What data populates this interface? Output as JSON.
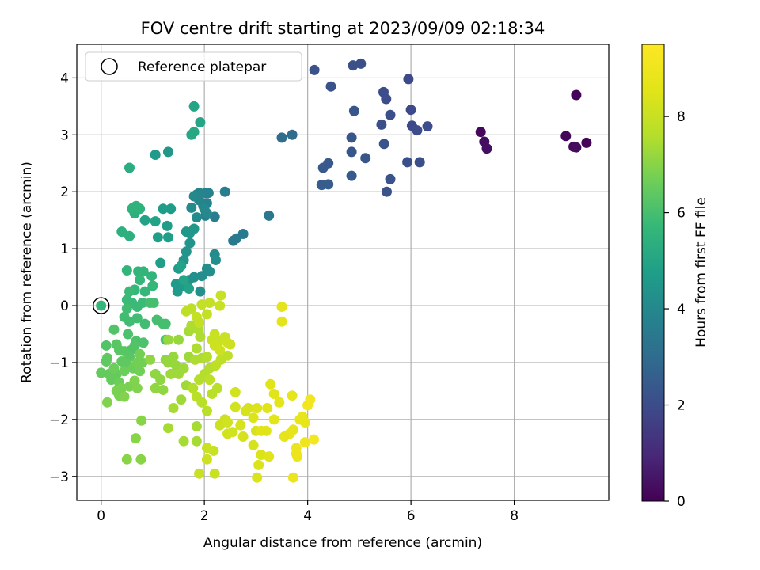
{
  "chart_data": {
    "type": "scatter",
    "title": "FOV centre drift starting at 2023/09/09 02:18:34",
    "xlabel": "Angular distance from reference (arcmin)",
    "ylabel": "Rotation from reference (arcmin)",
    "xlim": [
      -0.47,
      9.83
    ],
    "ylim": [
      -3.42,
      4.59
    ],
    "xticks": [
      0,
      2,
      4,
      6,
      8
    ],
    "yticks": [
      -3,
      -2,
      -1,
      0,
      1,
      2,
      3,
      4
    ],
    "grid": true,
    "legend": {
      "position": "top-left",
      "entries": [
        "Reference platepar"
      ]
    },
    "reference_point": {
      "x": 0,
      "y": 0
    },
    "colorbar": {
      "label": "Hours from first FF file",
      "colormap": "viridis",
      "range": [
        0,
        9.5
      ],
      "ticks": [
        0,
        2,
        4,
        6,
        8
      ]
    },
    "points": [
      [
        9.2,
        3.7,
        0.1
      ],
      [
        9.0,
        2.98,
        0.15
      ],
      [
        9.15,
        2.79,
        0.2
      ],
      [
        9.4,
        2.86,
        0.1
      ],
      [
        9.2,
        2.78,
        0.25
      ],
      [
        7.35,
        3.05,
        0.2
      ],
      [
        7.42,
        2.88,
        0.3
      ],
      [
        7.47,
        2.76,
        0.35
      ],
      [
        5.95,
        3.98,
        1.9
      ],
      [
        6.0,
        3.44,
        1.9
      ],
      [
        6.02,
        3.16,
        1.9
      ],
      [
        6.12,
        3.08,
        2.0
      ],
      [
        6.32,
        3.15,
        2.0
      ],
      [
        5.93,
        2.52,
        2.1
      ],
      [
        6.17,
        2.52,
        2.1
      ],
      [
        5.47,
        3.75,
        2.0
      ],
      [
        5.52,
        3.63,
        2.0
      ],
      [
        5.6,
        3.35,
        2.1
      ],
      [
        5.43,
        3.18,
        2.1
      ],
      [
        5.48,
        2.84,
        2.2
      ],
      [
        5.6,
        2.22,
        2.2
      ],
      [
        5.53,
        2.0,
        2.2
      ],
      [
        4.88,
        4.22,
        2.1
      ],
      [
        5.03,
        4.25,
        2.1
      ],
      [
        4.45,
        3.85,
        2.2
      ],
      [
        4.13,
        4.14,
        2.2
      ],
      [
        4.9,
        3.42,
        2.3
      ],
      [
        4.85,
        2.95,
        2.3
      ],
      [
        4.85,
        2.7,
        2.3
      ],
      [
        5.12,
        2.59,
        2.3
      ],
      [
        4.85,
        2.28,
        2.4
      ],
      [
        4.4,
        2.5,
        2.4
      ],
      [
        4.3,
        2.42,
        2.4
      ],
      [
        4.27,
        2.12,
        2.5
      ],
      [
        4.4,
        2.13,
        2.5
      ],
      [
        3.5,
        2.95,
        3.0
      ],
      [
        3.7,
        3.0,
        3.0
      ],
      [
        3.25,
        1.58,
        3.4
      ],
      [
        2.75,
        1.26,
        3.5
      ],
      [
        2.62,
        1.18,
        3.5
      ],
      [
        2.56,
        1.14,
        3.5
      ],
      [
        2.4,
        2.0,
        3.6
      ],
      [
        2.2,
        1.56,
        3.6
      ],
      [
        2.02,
        1.58,
        3.7
      ],
      [
        1.98,
        1.75,
        3.8
      ],
      [
        2.05,
        1.8,
        3.8
      ],
      [
        2.08,
        1.98,
        3.8
      ],
      [
        2.02,
        1.98,
        3.8
      ],
      [
        1.9,
        1.98,
        3.9
      ],
      [
        1.85,
        1.95,
        3.9
      ],
      [
        1.9,
        1.85,
        3.9
      ],
      [
        2.0,
        1.7,
        4.0
      ],
      [
        2.05,
        1.62,
        4.0
      ],
      [
        1.8,
        1.92,
        4.0
      ],
      [
        1.75,
        1.72,
        4.1
      ],
      [
        1.85,
        1.55,
        4.1
      ],
      [
        2.2,
        0.9,
        4.1
      ],
      [
        2.22,
        0.8,
        4.2
      ],
      [
        2.05,
        0.65,
        4.2
      ],
      [
        1.95,
        0.52,
        4.2
      ],
      [
        2.1,
        0.6,
        4.2
      ],
      [
        1.92,
        0.25,
        4.3
      ],
      [
        1.8,
        0.5,
        4.3
      ],
      [
        1.7,
        0.45,
        4.3
      ],
      [
        1.6,
        0.8,
        4.4
      ],
      [
        1.65,
        0.95,
        4.4
      ],
      [
        1.72,
        1.1,
        4.4
      ],
      [
        1.65,
        1.3,
        4.5
      ],
      [
        1.72,
        1.28,
        4.5
      ],
      [
        1.8,
        1.35,
        4.5
      ],
      [
        1.5,
        0.65,
        4.6
      ],
      [
        1.45,
        0.38,
        4.6
      ],
      [
        1.48,
        0.25,
        4.6
      ],
      [
        1.6,
        0.35,
        4.6
      ],
      [
        1.35,
        1.7,
        4.7
      ],
      [
        1.2,
        1.7,
        4.7
      ],
      [
        1.28,
        1.4,
        4.7
      ],
      [
        1.3,
        1.2,
        4.8
      ],
      [
        1.1,
        1.2,
        4.8
      ],
      [
        1.15,
        0.75,
        4.8
      ],
      [
        0.85,
        1.5,
        4.9
      ],
      [
        1.05,
        1.48,
        4.9
      ],
      [
        1.3,
        2.7,
        4.5
      ],
      [
        1.05,
        2.65,
        4.6
      ],
      [
        1.55,
        0.7,
        4.9
      ],
      [
        1.7,
        0.3,
        4.9
      ],
      [
        1.6,
        0.45,
        5.0
      ],
      [
        1.8,
        3.5,
        5.0
      ],
      [
        1.92,
        3.22,
        5.0
      ],
      [
        1.75,
        3.0,
        5.1
      ],
      [
        1.8,
        3.05,
        5.1
      ],
      [
        0.55,
        2.42,
        5.3
      ],
      [
        0.4,
        1.3,
        5.4
      ],
      [
        0.55,
        1.22,
        5.4
      ],
      [
        0.65,
        1.62,
        5.4
      ],
      [
        0.62,
        1.72,
        5.5
      ],
      [
        0.75,
        1.7,
        5.5
      ],
      [
        0.68,
        1.75,
        5.5
      ],
      [
        0.6,
        1.7,
        5.5
      ],
      [
        0.5,
        0.62,
        5.6
      ],
      [
        0.72,
        0.6,
        5.6
      ],
      [
        0.82,
        0.6,
        5.6
      ],
      [
        0.98,
        0.52,
        5.6
      ],
      [
        1.0,
        0.35,
        5.7
      ],
      [
        0.75,
        0.45,
        5.7
      ],
      [
        0.85,
        0.25,
        5.7
      ],
      [
        0.65,
        0.28,
        5.7
      ],
      [
        0.55,
        0.25,
        5.8
      ],
      [
        0.5,
        0.1,
        5.8
      ],
      [
        0.6,
        0.05,
        5.8
      ],
      [
        0.7,
        -0.02,
        5.8
      ],
      [
        0.8,
        0.05,
        5.8
      ],
      [
        0.5,
        -0.05,
        5.9
      ],
      [
        0.45,
        -0.2,
        5.9
      ],
      [
        0.55,
        -0.28,
        5.9
      ],
      [
        0.7,
        -0.22,
        5.9
      ],
      [
        0.85,
        -0.32,
        5.9
      ],
      [
        0.95,
        0.05,
        6.0
      ],
      [
        1.02,
        0.05,
        6.0
      ],
      [
        1.08,
        -0.25,
        6.0
      ],
      [
        1.2,
        -0.32,
        6.0
      ],
      [
        1.25,
        -0.32,
        6.0
      ],
      [
        1.25,
        -0.6,
        6.1
      ],
      [
        0.52,
        -0.5,
        6.1
      ],
      [
        0.68,
        -0.62,
        6.1
      ],
      [
        0.82,
        -0.65,
        6.1
      ],
      [
        0.58,
        -0.78,
        6.2
      ],
      [
        0.65,
        -0.7,
        6.2
      ],
      [
        0.1,
        -0.7,
        6.2
      ],
      [
        0.25,
        -0.42,
        6.2
      ],
      [
        0.3,
        -0.68,
        6.3
      ],
      [
        0.35,
        -0.78,
        6.3
      ],
      [
        0.45,
        -0.8,
        6.3
      ],
      [
        0.55,
        -0.9,
        6.3
      ],
      [
        0.4,
        -0.98,
        6.4
      ],
      [
        0.5,
        -1.02,
        6.4
      ],
      [
        0.1,
        -0.98,
        6.4
      ],
      [
        0.12,
        -0.92,
        6.4
      ],
      [
        0.0,
        -1.18,
        6.5
      ],
      [
        0.15,
        -1.2,
        6.5
      ],
      [
        0.2,
        -1.3,
        6.5
      ],
      [
        0.3,
        -1.2,
        6.5
      ],
      [
        0.35,
        -1.35,
        6.6
      ],
      [
        0.25,
        -1.1,
        6.6
      ],
      [
        0.45,
        -1.15,
        6.6
      ],
      [
        0.62,
        -1.1,
        6.6
      ],
      [
        0.7,
        -1.0,
        6.7
      ],
      [
        0.75,
        -0.85,
        6.7
      ],
      [
        0.8,
        -1.0,
        6.7
      ],
      [
        0.75,
        -1.15,
        6.7
      ],
      [
        0.3,
        -1.5,
        6.8
      ],
      [
        0.35,
        -1.58,
        6.8
      ],
      [
        0.4,
        -1.45,
        6.8
      ],
      [
        0.55,
        -1.42,
        6.8
      ],
      [
        0.65,
        -1.32,
        6.9
      ],
      [
        0.7,
        -1.45,
        6.9
      ],
      [
        0.12,
        -1.7,
        6.9
      ],
      [
        0.45,
        -1.6,
        6.9
      ],
      [
        0.5,
        -2.7,
        7.0
      ],
      [
        0.77,
        -2.7,
        7.0
      ],
      [
        0.67,
        -2.33,
        7.0
      ],
      [
        0.78,
        -2.02,
        7.0
      ],
      [
        0.95,
        -0.95,
        7.1
      ],
      [
        1.05,
        -1.2,
        7.1
      ],
      [
        1.15,
        -1.3,
        7.1
      ],
      [
        1.25,
        -0.95,
        7.1
      ],
      [
        1.05,
        -1.45,
        7.1
      ],
      [
        1.2,
        -1.48,
        7.1
      ],
      [
        1.3,
        -1.0,
        7.2
      ],
      [
        1.4,
        -0.9,
        7.2
      ],
      [
        1.3,
        -0.6,
        7.2
      ],
      [
        1.5,
        -0.6,
        7.2
      ],
      [
        1.45,
        -1.05,
        7.2
      ],
      [
        1.35,
        -1.2,
        7.3
      ],
      [
        1.5,
        -1.2,
        7.3
      ],
      [
        1.6,
        -1.1,
        7.3
      ],
      [
        1.7,
        -0.9,
        7.3
      ],
      [
        1.65,
        -1.4,
        7.3
      ],
      [
        1.55,
        -1.65,
        7.3
      ],
      [
        1.4,
        -1.8,
        7.4
      ],
      [
        1.3,
        -2.15,
        7.4
      ],
      [
        1.6,
        -2.38,
        7.4
      ],
      [
        1.85,
        -2.38,
        7.4
      ],
      [
        1.85,
        -2.12,
        7.4
      ],
      [
        1.7,
        -0.45,
        7.4
      ],
      [
        1.75,
        -0.35,
        7.5
      ],
      [
        1.88,
        -0.42,
        7.5
      ],
      [
        1.92,
        -0.55,
        7.5
      ],
      [
        1.85,
        -0.75,
        7.5
      ],
      [
        1.82,
        -0.95,
        7.5
      ],
      [
        1.95,
        -0.92,
        7.5
      ],
      [
        2.05,
        -0.9,
        7.6
      ],
      [
        2.1,
        -1.1,
        7.6
      ],
      [
        2.0,
        -1.2,
        7.6
      ],
      [
        1.9,
        -1.3,
        7.6
      ],
      [
        1.78,
        -1.45,
        7.6
      ],
      [
        1.85,
        -1.6,
        7.7
      ],
      [
        1.95,
        -1.7,
        7.7
      ],
      [
        2.05,
        -1.85,
        7.7
      ],
      [
        2.15,
        -1.55,
        7.7
      ],
      [
        2.25,
        -1.45,
        7.7
      ],
      [
        2.1,
        -1.3,
        7.8
      ],
      [
        2.22,
        -1.05,
        7.8
      ],
      [
        2.32,
        -0.95,
        7.8
      ],
      [
        2.45,
        -0.88,
        7.8
      ],
      [
        1.65,
        -0.1,
        7.8
      ],
      [
        1.75,
        -0.05,
        7.8
      ],
      [
        1.85,
        -0.2,
        7.9
      ],
      [
        1.9,
        -0.3,
        7.9
      ],
      [
        1.95,
        0.02,
        7.9
      ],
      [
        2.05,
        -0.15,
        7.9
      ],
      [
        2.1,
        0.05,
        7.9
      ],
      [
        2.3,
        0.0,
        8.0
      ],
      [
        2.32,
        0.18,
        8.0
      ],
      [
        2.15,
        -0.6,
        8.0
      ],
      [
        2.2,
        -0.5,
        8.0
      ],
      [
        2.3,
        -0.62,
        8.0
      ],
      [
        2.4,
        -0.55,
        8.0
      ],
      [
        2.45,
        -0.65,
        8.1
      ],
      [
        2.5,
        -0.68,
        8.1
      ],
      [
        2.2,
        -0.7,
        8.1
      ],
      [
        2.3,
        -0.78,
        8.1
      ],
      [
        1.9,
        -2.95,
        8.0
      ],
      [
        2.2,
        -2.95,
        8.0
      ],
      [
        2.05,
        -2.5,
        8.0
      ],
      [
        2.18,
        -2.55,
        8.0
      ],
      [
        2.05,
        -2.7,
        8.1
      ],
      [
        2.3,
        -2.1,
        8.1
      ],
      [
        2.4,
        -2.0,
        8.1
      ],
      [
        2.45,
        -2.05,
        8.2
      ],
      [
        2.45,
        -2.25,
        8.2
      ],
      [
        2.55,
        -2.22,
        8.2
      ],
      [
        2.6,
        -1.78,
        8.2
      ],
      [
        2.6,
        -1.52,
        8.2
      ],
      [
        2.7,
        -2.1,
        8.3
      ],
      [
        2.75,
        -2.3,
        8.3
      ],
      [
        2.8,
        -1.85,
        8.3
      ],
      [
        2.85,
        -1.8,
        8.3
      ],
      [
        2.95,
        -2.45,
        8.3
      ],
      [
        3.0,
        -2.2,
        8.3
      ],
      [
        2.95,
        -1.97,
        8.4
      ],
      [
        3.02,
        -1.8,
        8.4
      ],
      [
        3.05,
        -2.8,
        8.4
      ],
      [
        3.02,
        -3.02,
        8.4
      ],
      [
        3.1,
        -2.62,
        8.4
      ],
      [
        3.25,
        -2.65,
        8.5
      ],
      [
        3.1,
        -2.2,
        8.5
      ],
      [
        3.2,
        -2.2,
        8.5
      ],
      [
        3.22,
        -1.8,
        8.5
      ],
      [
        3.28,
        -1.38,
        8.5
      ],
      [
        3.35,
        -1.55,
        8.5
      ],
      [
        3.45,
        -1.7,
        8.6
      ],
      [
        3.35,
        -2.0,
        8.6
      ],
      [
        3.5,
        -0.02,
        8.6
      ],
      [
        3.5,
        -0.28,
        8.6
      ],
      [
        3.55,
        -2.3,
        8.7
      ],
      [
        3.65,
        -2.25,
        8.7
      ],
      [
        3.72,
        -2.18,
        8.7
      ],
      [
        3.7,
        -1.58,
        8.7
      ],
      [
        3.85,
        -2.0,
        8.8
      ],
      [
        3.9,
        -1.95,
        8.8
      ],
      [
        3.95,
        -2.05,
        8.8
      ],
      [
        3.78,
        -2.6,
        8.9
      ],
      [
        3.8,
        -2.65,
        8.9
      ],
      [
        3.72,
        -3.02,
        8.9
      ],
      [
        3.78,
        -2.5,
        8.9
      ],
      [
        3.95,
        -2.4,
        9.0
      ],
      [
        4.0,
        -1.75,
        9.1
      ],
      [
        4.05,
        -1.65,
        9.1
      ],
      [
        4.12,
        -2.35,
        9.2
      ]
    ]
  }
}
